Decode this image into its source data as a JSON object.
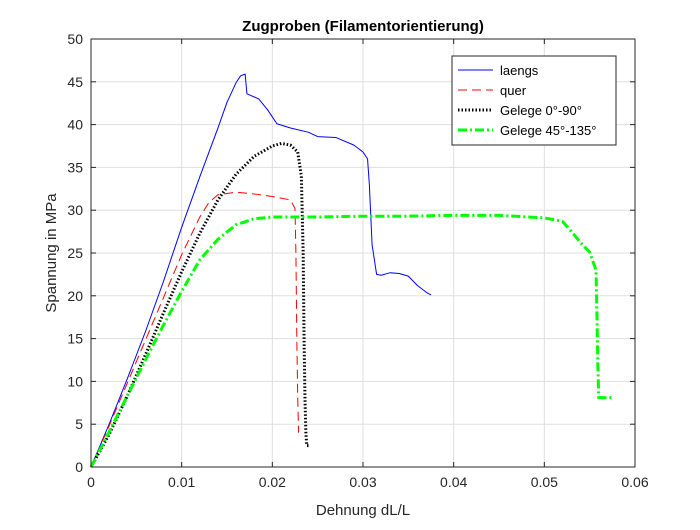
{
  "chart_data": {
    "type": "line",
    "title": "Zugproben (Filamentorientierung)",
    "xlabel": "Dehnung dL/L",
    "ylabel": "Spannung in MPa",
    "xlim": [
      0,
      0.06
    ],
    "ylim": [
      0,
      50
    ],
    "xticks": [
      0,
      0.01,
      0.02,
      0.03,
      0.04,
      0.05,
      0.06
    ],
    "xtick_labels": [
      "0",
      "0.01",
      "0.02",
      "0.03",
      "0.04",
      "0.05",
      "0.06"
    ],
    "yticks": [
      0,
      5,
      10,
      15,
      20,
      25,
      30,
      35,
      40,
      45,
      50
    ],
    "ytick_labels": [
      "0",
      "5",
      "10",
      "15",
      "20",
      "25",
      "30",
      "35",
      "40",
      "45",
      "50"
    ],
    "grid": true,
    "legend_position": "top-right",
    "series": [
      {
        "name": "laengs",
        "color": "#0000FF",
        "style": "solid",
        "points": [
          [
            0,
            0
          ],
          [
            0.002,
            5
          ],
          [
            0.004,
            10.3
          ],
          [
            0.006,
            15.8
          ],
          [
            0.008,
            21.7
          ],
          [
            0.01,
            28
          ],
          [
            0.012,
            33.9
          ],
          [
            0.014,
            39.6
          ],
          [
            0.015,
            42.6
          ],
          [
            0.016,
            44.9
          ],
          [
            0.0165,
            45.7
          ],
          [
            0.017,
            45.9
          ],
          [
            0.0172,
            43.6
          ],
          [
            0.0185,
            43.0
          ],
          [
            0.0195,
            41.7
          ],
          [
            0.0205,
            40.1
          ],
          [
            0.022,
            39.6
          ],
          [
            0.024,
            39.1
          ],
          [
            0.025,
            38.6
          ],
          [
            0.027,
            38.5
          ],
          [
            0.029,
            37.6
          ],
          [
            0.03,
            36.8
          ],
          [
            0.0305,
            36
          ],
          [
            0.0307,
            33
          ],
          [
            0.031,
            26
          ],
          [
            0.0315,
            22.5
          ],
          [
            0.032,
            22.4
          ],
          [
            0.033,
            22.7
          ],
          [
            0.034,
            22.6
          ],
          [
            0.035,
            22.3
          ],
          [
            0.036,
            21.2
          ],
          [
            0.037,
            20.4
          ],
          [
            0.0375,
            20.1
          ]
        ]
      },
      {
        "name": "quer",
        "color": "#FF0000",
        "style": "dashed",
        "points": [
          [
            0,
            0
          ],
          [
            0.002,
            4.8
          ],
          [
            0.004,
            9.8
          ],
          [
            0.006,
            14.8
          ],
          [
            0.008,
            19.8
          ],
          [
            0.01,
            24.8
          ],
          [
            0.012,
            29.2
          ],
          [
            0.013,
            30.9
          ],
          [
            0.014,
            31.8
          ],
          [
            0.016,
            32.1
          ],
          [
            0.018,
            31.9
          ],
          [
            0.02,
            31.6
          ],
          [
            0.022,
            31.2
          ],
          [
            0.0225,
            30.2
          ],
          [
            0.0226,
            25
          ],
          [
            0.0227,
            15
          ],
          [
            0.0228,
            8
          ],
          [
            0.0229,
            4
          ]
        ]
      },
      {
        "name": "Gelege 0°-90°",
        "color": "#000000",
        "style": "dotted",
        "points": [
          [
            0,
            0
          ],
          [
            0.002,
            3.8
          ],
          [
            0.004,
            8.3
          ],
          [
            0.006,
            13.1
          ],
          [
            0.008,
            18
          ],
          [
            0.01,
            22.8
          ],
          [
            0.012,
            27.3
          ],
          [
            0.014,
            31.2
          ],
          [
            0.016,
            34.2
          ],
          [
            0.018,
            36.3
          ],
          [
            0.02,
            37.5
          ],
          [
            0.021,
            37.8
          ],
          [
            0.022,
            37.6
          ],
          [
            0.0228,
            36.8
          ],
          [
            0.0232,
            34
          ],
          [
            0.0234,
            25
          ],
          [
            0.0235,
            15
          ],
          [
            0.0236,
            8
          ],
          [
            0.0237,
            4
          ],
          [
            0.0238,
            2.5
          ],
          [
            0.0242,
            2.5
          ]
        ]
      },
      {
        "name": "Gelege 45°-135°",
        "color": "#00FF00",
        "style": "dashdot",
        "points": [
          [
            0,
            0
          ],
          [
            0.002,
            4.1
          ],
          [
            0.004,
            8.3
          ],
          [
            0.006,
            12.5
          ],
          [
            0.008,
            16.6
          ],
          [
            0.01,
            20.5
          ],
          [
            0.012,
            24.2
          ],
          [
            0.014,
            26.6
          ],
          [
            0.016,
            28.3
          ],
          [
            0.018,
            29
          ],
          [
            0.02,
            29.2
          ],
          [
            0.025,
            29.2
          ],
          [
            0.03,
            29.3
          ],
          [
            0.035,
            29.3
          ],
          [
            0.04,
            29.4
          ],
          [
            0.045,
            29.4
          ],
          [
            0.05,
            29.1
          ],
          [
            0.052,
            28.7
          ],
          [
            0.053,
            27.5
          ],
          [
            0.054,
            26.2
          ],
          [
            0.055,
            25.1
          ],
          [
            0.0557,
            23
          ],
          [
            0.0558,
            18
          ],
          [
            0.0559,
            12
          ],
          [
            0.056,
            8.1
          ],
          [
            0.057,
            8.1
          ],
          [
            0.0574,
            8.1
          ]
        ]
      }
    ]
  }
}
